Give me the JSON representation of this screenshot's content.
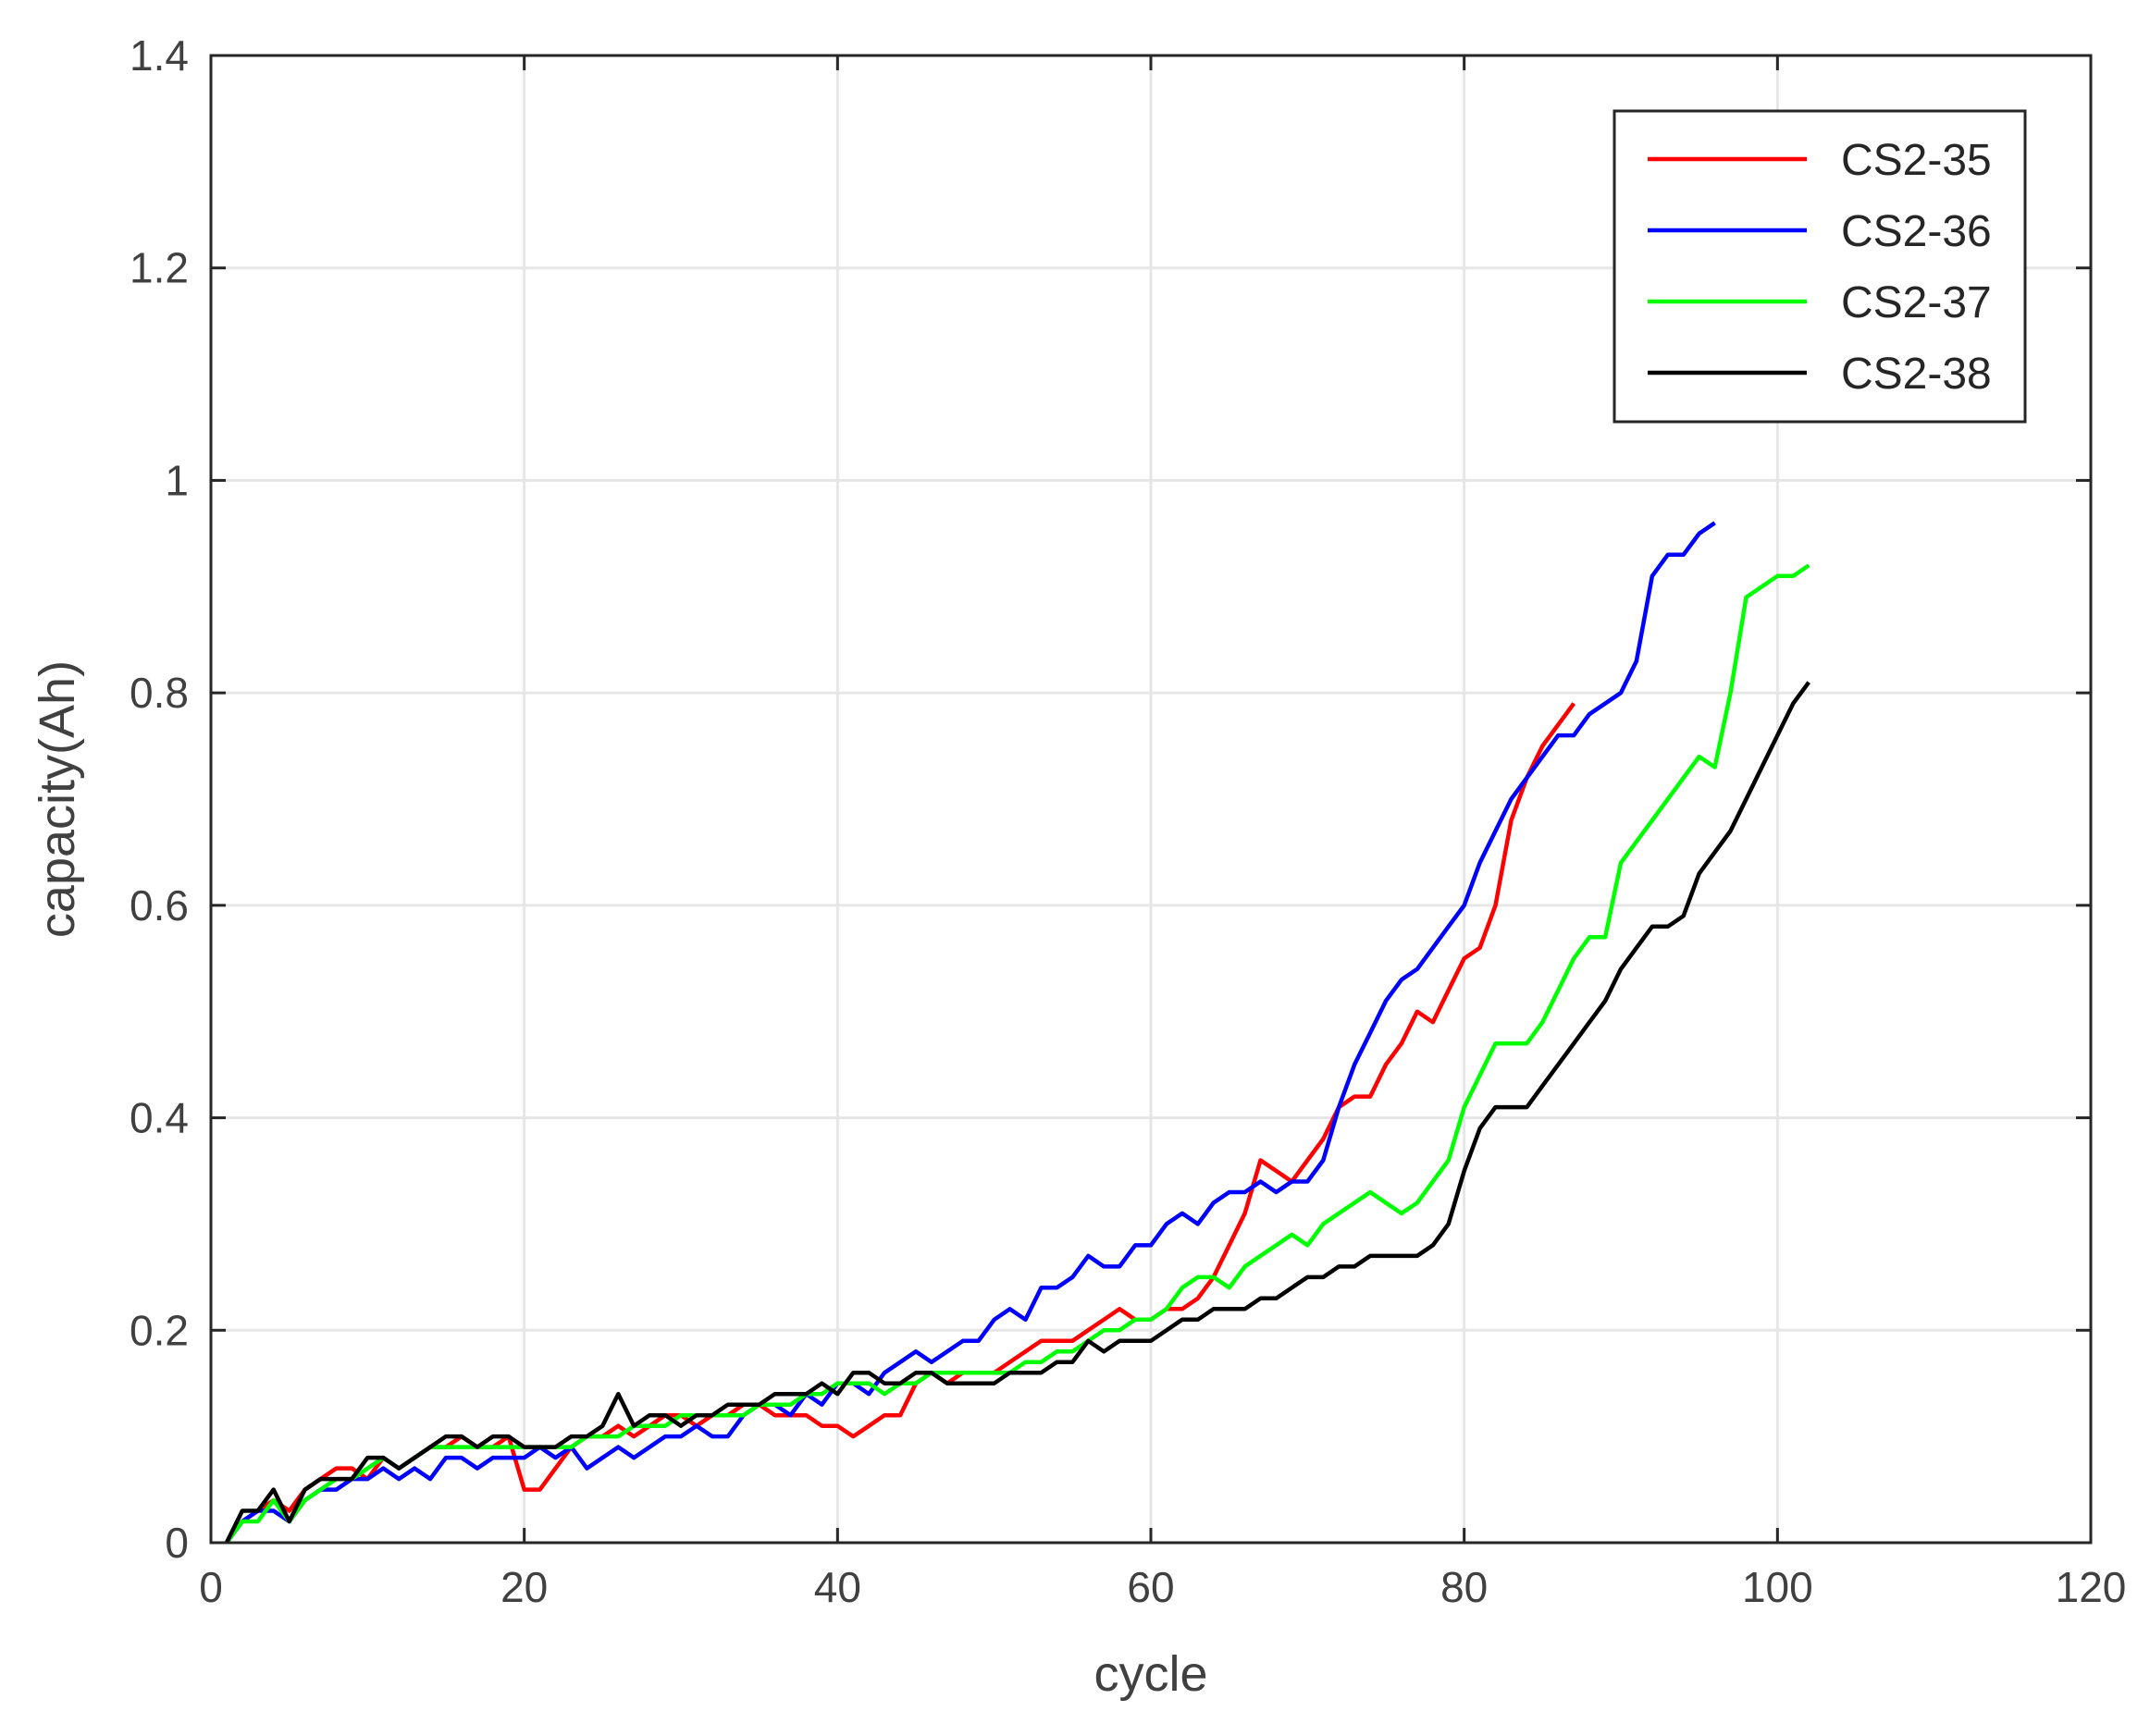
{
  "chart_data": {
    "type": "line",
    "title": "",
    "xlabel": "cycle",
    "ylabel": "capacity(Ah)",
    "xlim": [
      0,
      120
    ],
    "ylim": [
      0,
      1.4
    ],
    "xticks": [
      0,
      20,
      40,
      60,
      80,
      100,
      120
    ],
    "yticks": [
      0,
      0.2,
      0.4,
      0.6,
      0.8,
      1,
      1.2,
      1.4
    ],
    "xtick_labels": [
      "0",
      "20",
      "40",
      "60",
      "80",
      "100",
      "120"
    ],
    "ytick_labels": [
      "0",
      "0.2",
      "0.4",
      "0.6",
      "0.8",
      "1",
      "1.2",
      "1.4"
    ],
    "grid": true,
    "legend_position": "top-right",
    "series": [
      {
        "name": "CS2-35",
        "color": "#ff0000",
        "x": [
          1,
          2,
          3,
          4,
          5,
          6,
          7,
          8,
          9,
          10,
          11,
          12,
          13,
          14,
          15,
          16,
          17,
          18,
          19,
          20,
          21,
          22,
          23,
          24,
          25,
          26,
          27,
          28,
          29,
          30,
          31,
          32,
          33,
          34,
          35,
          36,
          37,
          38,
          39,
          40,
          41,
          42,
          43,
          44,
          45,
          46,
          47,
          48,
          49,
          50,
          51,
          52,
          53,
          54,
          55,
          56,
          57,
          58,
          59,
          60,
          61,
          62,
          63,
          64,
          65,
          66,
          67,
          68,
          69,
          70,
          71,
          72,
          73,
          74,
          75,
          76,
          77,
          78,
          79,
          80,
          81,
          82,
          83,
          84,
          85,
          86,
          87
        ],
        "y": [
          0,
          0.02,
          0.03,
          0.04,
          0.03,
          0.05,
          0.06,
          0.07,
          0.07,
          0.06,
          0.08,
          0.07,
          0.08,
          0.09,
          0.09,
          0.1,
          0.09,
          0.09,
          0.1,
          0.05,
          0.05,
          0.07,
          0.09,
          0.1,
          0.1,
          0.11,
          0.1,
          0.11,
          0.12,
          0.12,
          0.11,
          0.12,
          0.12,
          0.13,
          0.13,
          0.12,
          0.12,
          0.12,
          0.11,
          0.11,
          0.1,
          0.11,
          0.12,
          0.12,
          0.15,
          0.16,
          0.15,
          0.16,
          0.16,
          0.16,
          0.17,
          0.18,
          0.19,
          0.19,
          0.19,
          0.2,
          0.21,
          0.22,
          0.21,
          0.21,
          0.22,
          0.22,
          0.23,
          0.25,
          0.28,
          0.31,
          0.36,
          0.35,
          0.34,
          0.36,
          0.38,
          0.41,
          0.42,
          0.42,
          0.45,
          0.47,
          0.5,
          0.49,
          0.52,
          0.55,
          0.56,
          0.6,
          0.68,
          0.72,
          0.75,
          0.77,
          0.79
        ]
      },
      {
        "name": "CS2-36",
        "color": "#0000ff",
        "x": [
          1,
          2,
          3,
          4,
          5,
          6,
          7,
          8,
          9,
          10,
          11,
          12,
          13,
          14,
          15,
          16,
          17,
          18,
          19,
          20,
          21,
          22,
          23,
          24,
          25,
          26,
          27,
          28,
          29,
          30,
          31,
          32,
          33,
          34,
          35,
          36,
          37,
          38,
          39,
          40,
          41,
          42,
          43,
          44,
          45,
          46,
          47,
          48,
          49,
          50,
          51,
          52,
          53,
          54,
          55,
          56,
          57,
          58,
          59,
          60,
          61,
          62,
          63,
          64,
          65,
          66,
          67,
          68,
          69,
          70,
          71,
          72,
          73,
          74,
          75,
          76,
          77,
          78,
          79,
          80,
          81,
          82,
          83,
          84,
          85,
          86,
          87,
          88,
          89,
          90,
          91,
          92,
          93,
          94,
          95,
          96
        ],
        "y": [
          0,
          0.02,
          0.03,
          0.03,
          0.02,
          0.04,
          0.05,
          0.05,
          0.06,
          0.06,
          0.07,
          0.06,
          0.07,
          0.06,
          0.08,
          0.08,
          0.07,
          0.08,
          0.08,
          0.08,
          0.09,
          0.08,
          0.09,
          0.07,
          0.08,
          0.09,
          0.08,
          0.09,
          0.1,
          0.1,
          0.11,
          0.1,
          0.1,
          0.12,
          0.13,
          0.13,
          0.12,
          0.14,
          0.13,
          0.15,
          0.15,
          0.14,
          0.16,
          0.17,
          0.18,
          0.17,
          0.18,
          0.19,
          0.19,
          0.21,
          0.22,
          0.21,
          0.24,
          0.24,
          0.25,
          0.27,
          0.26,
          0.26,
          0.28,
          0.28,
          0.3,
          0.31,
          0.3,
          0.32,
          0.33,
          0.33,
          0.34,
          0.33,
          0.34,
          0.34,
          0.36,
          0.41,
          0.45,
          0.48,
          0.51,
          0.53,
          0.54,
          0.56,
          0.58,
          0.6,
          0.64,
          0.67,
          0.7,
          0.72,
          0.74,
          0.76,
          0.76,
          0.78,
          0.79,
          0.8,
          0.83,
          0.91,
          0.93,
          0.93,
          0.95,
          0.96
        ]
      },
      {
        "name": "CS2-37",
        "color": "#00ff00",
        "x": [
          1,
          2,
          3,
          4,
          5,
          6,
          7,
          8,
          9,
          10,
          11,
          12,
          13,
          14,
          15,
          16,
          17,
          18,
          19,
          20,
          21,
          22,
          23,
          24,
          25,
          26,
          27,
          28,
          29,
          30,
          31,
          32,
          33,
          34,
          35,
          36,
          37,
          38,
          39,
          40,
          41,
          42,
          43,
          44,
          45,
          46,
          47,
          48,
          49,
          50,
          51,
          52,
          53,
          54,
          55,
          56,
          57,
          58,
          59,
          60,
          61,
          62,
          63,
          64,
          65,
          66,
          67,
          68,
          69,
          70,
          71,
          72,
          73,
          74,
          75,
          76,
          77,
          78,
          79,
          80,
          81,
          82,
          83,
          84,
          85,
          86,
          87,
          88,
          89,
          90,
          91,
          92,
          93,
          94,
          95,
          96,
          97,
          98,
          99,
          100,
          101,
          102
        ],
        "y": [
          0,
          0.02,
          0.02,
          0.04,
          0.02,
          0.04,
          0.05,
          0.06,
          0.06,
          0.07,
          0.08,
          0.07,
          0.08,
          0.09,
          0.09,
          0.09,
          0.09,
          0.09,
          0.09,
          0.09,
          0.09,
          0.09,
          0.09,
          0.1,
          0.1,
          0.1,
          0.11,
          0.11,
          0.11,
          0.12,
          0.12,
          0.12,
          0.12,
          0.12,
          0.13,
          0.13,
          0.13,
          0.14,
          0.14,
          0.15,
          0.15,
          0.15,
          0.14,
          0.15,
          0.15,
          0.16,
          0.16,
          0.16,
          0.16,
          0.16,
          0.16,
          0.17,
          0.17,
          0.18,
          0.18,
          0.19,
          0.2,
          0.2,
          0.21,
          0.21,
          0.22,
          0.24,
          0.25,
          0.25,
          0.24,
          0.26,
          0.27,
          0.28,
          0.29,
          0.28,
          0.3,
          0.31,
          0.32,
          0.33,
          0.32,
          0.31,
          0.32,
          0.34,
          0.36,
          0.41,
          0.44,
          0.47,
          0.47,
          0.47,
          0.49,
          0.52,
          0.55,
          0.57,
          0.57,
          0.64,
          0.66,
          0.68,
          0.7,
          0.72,
          0.74,
          0.73,
          0.8,
          0.89,
          0.9,
          0.91,
          0.91,
          0.92
        ]
      },
      {
        "name": "CS2-38",
        "color": "#000000",
        "x": [
          1,
          2,
          3,
          4,
          5,
          6,
          7,
          8,
          9,
          10,
          11,
          12,
          13,
          14,
          15,
          16,
          17,
          18,
          19,
          20,
          21,
          22,
          23,
          24,
          25,
          26,
          27,
          28,
          29,
          30,
          31,
          32,
          33,
          34,
          35,
          36,
          37,
          38,
          39,
          40,
          41,
          42,
          43,
          44,
          45,
          46,
          47,
          48,
          49,
          50,
          51,
          52,
          53,
          54,
          55,
          56,
          57,
          58,
          59,
          60,
          61,
          62,
          63,
          64,
          65,
          66,
          67,
          68,
          69,
          70,
          71,
          72,
          73,
          74,
          75,
          76,
          77,
          78,
          79,
          80,
          81,
          82,
          83,
          84,
          85,
          86,
          87,
          88,
          89,
          90,
          91,
          92,
          93,
          94,
          95,
          96,
          97,
          98,
          99,
          100,
          101,
          102
        ],
        "y": [
          0,
          0.03,
          0.03,
          0.05,
          0.02,
          0.05,
          0.06,
          0.06,
          0.06,
          0.08,
          0.08,
          0.07,
          0.08,
          0.09,
          0.1,
          0.1,
          0.09,
          0.1,
          0.1,
          0.09,
          0.09,
          0.09,
          0.1,
          0.1,
          0.11,
          0.14,
          0.11,
          0.12,
          0.12,
          0.11,
          0.12,
          0.12,
          0.13,
          0.13,
          0.13,
          0.14,
          0.14,
          0.14,
          0.15,
          0.14,
          0.16,
          0.16,
          0.15,
          0.15,
          0.16,
          0.16,
          0.15,
          0.15,
          0.15,
          0.15,
          0.16,
          0.16,
          0.16,
          0.17,
          0.17,
          0.19,
          0.18,
          0.19,
          0.19,
          0.19,
          0.2,
          0.21,
          0.21,
          0.22,
          0.22,
          0.22,
          0.23,
          0.23,
          0.24,
          0.25,
          0.25,
          0.26,
          0.26,
          0.27,
          0.27,
          0.27,
          0.27,
          0.28,
          0.3,
          0.35,
          0.39,
          0.41,
          0.41,
          0.41,
          0.43,
          0.45,
          0.47,
          0.49,
          0.51,
          0.54,
          0.56,
          0.58,
          0.58,
          0.59,
          0.63,
          0.65,
          0.67,
          0.7,
          0.73,
          0.76,
          0.79,
          0.81
        ]
      }
    ]
  }
}
